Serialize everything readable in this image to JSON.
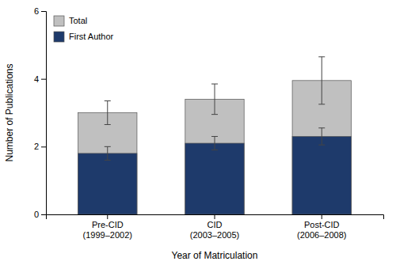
{
  "chart_data": {
    "type": "bar",
    "categories": [
      "Pre-CID\n(1999–2002)",
      "CID\n(2003–2005)",
      "Post-CID\n(2006–2008)"
    ],
    "series": [
      {
        "name": "Total",
        "color": "#c0c0c0",
        "values": [
          3.0,
          3.4,
          3.95
        ],
        "errors": [
          0.35,
          0.45,
          0.7
        ]
      },
      {
        "name": "First Author",
        "color": "#1e3a6b",
        "values": [
          1.8,
          2.1,
          2.3
        ],
        "errors": [
          0.2,
          0.2,
          0.25
        ]
      }
    ],
    "xlabel": "Year of Matriculation",
    "ylabel": "Number of Publications",
    "ylim": [
      0,
      6
    ],
    "yticks": [
      0,
      2,
      4,
      6
    ],
    "grid": false,
    "legend": "upper left"
  }
}
